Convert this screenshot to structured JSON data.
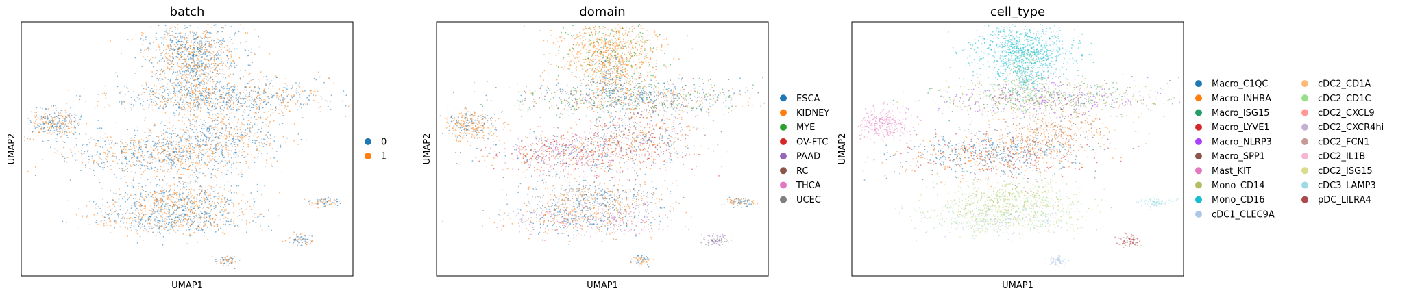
{
  "chart_data": [
    {
      "type": "scatter",
      "title": "batch",
      "xlabel": "UMAP1",
      "ylabel": "UMAP2",
      "legend_position": "right",
      "legend": [
        {
          "name": "0",
          "color": "#1f77b4"
        },
        {
          "name": "1",
          "color": "#ff7f0e"
        }
      ]
    },
    {
      "type": "scatter",
      "title": "domain",
      "xlabel": "UMAP1",
      "ylabel": "UMAP2",
      "legend_position": "right",
      "legend": [
        {
          "name": "ESCA",
          "color": "#1f77b4"
        },
        {
          "name": "KIDNEY",
          "color": "#ff7f0e"
        },
        {
          "name": "MYE",
          "color": "#2ca02c"
        },
        {
          "name": "OV-FTC",
          "color": "#d62728"
        },
        {
          "name": "PAAD",
          "color": "#9467bd"
        },
        {
          "name": "RC",
          "color": "#8c564b"
        },
        {
          "name": "THCA",
          "color": "#e377c2"
        },
        {
          "name": "UCEC",
          "color": "#7f7f7f"
        }
      ]
    },
    {
      "type": "scatter",
      "title": "cell_type",
      "xlabel": "UMAP1",
      "ylabel": "UMAP2",
      "legend_position": "right",
      "legend": [
        {
          "name": "Macro_C1QC",
          "color": "#1f77b4"
        },
        {
          "name": "Macro_INHBA",
          "color": "#ff7f0e"
        },
        {
          "name": "Macro_ISG15",
          "color": "#279e68"
        },
        {
          "name": "Macro_LYVE1",
          "color": "#d62728"
        },
        {
          "name": "Macro_NLRP3",
          "color": "#aa40fc"
        },
        {
          "name": "Macro_SPP1",
          "color": "#8c564b"
        },
        {
          "name": "Mast_KIT",
          "color": "#e377c2"
        },
        {
          "name": "Mono_CD14",
          "color": "#b5bd61"
        },
        {
          "name": "Mono_CD16",
          "color": "#17becf"
        },
        {
          "name": "cDC1_CLEC9A",
          "color": "#aec7e8"
        },
        {
          "name": "cDC2_CD1A",
          "color": "#ffbb78"
        },
        {
          "name": "cDC2_CD1C",
          "color": "#98df8a"
        },
        {
          "name": "cDC2_CXCL9",
          "color": "#ff9896"
        },
        {
          "name": "cDC2_CXCR4hi",
          "color": "#c5b0d5"
        },
        {
          "name": "cDC2_FCN1",
          "color": "#c49c94"
        },
        {
          "name": "cDC2_IL1B",
          "color": "#f7b6d2"
        },
        {
          "name": "cDC2_ISG15",
          "color": "#dbdb8d"
        },
        {
          "name": "cDC3_LAMP3",
          "color": "#9edae5"
        },
        {
          "name": "pDC_LILRA4",
          "color": "#ad494a"
        }
      ]
    }
  ]
}
